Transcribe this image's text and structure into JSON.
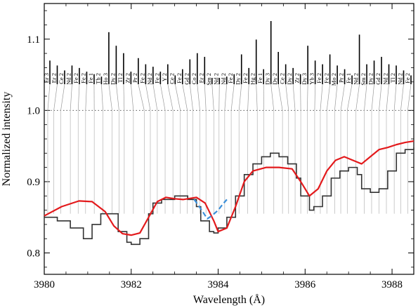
{
  "chart_data": {
    "type": "line",
    "xlabel": "Wavelength (Å)",
    "ylabel": "Normalized intensity",
    "xlim": [
      3980,
      3988.5
    ],
    "ylim": [
      0.77,
      1.15
    ],
    "x_ticks": [
      "3980",
      "3982",
      "3984",
      "3986",
      "3988"
    ],
    "y_ticks": [
      "0.8",
      "0.9",
      "1.0",
      "1.1"
    ],
    "x_tick_values": [
      3980,
      3982,
      3984,
      3986,
      3988
    ],
    "y_tick_values": [
      0.8,
      0.9,
      1.0,
      1.1
    ],
    "reference_line": 1.0,
    "series": [
      {
        "style": "observed-step",
        "color": "#333333",
        "x": [
          3980.0,
          3980.3,
          3980.6,
          3980.9,
          3981.1,
          3981.3,
          3981.5,
          3981.7,
          3981.9,
          3982.0,
          3982.2,
          3982.4,
          3982.5,
          3982.7,
          3982.9,
          3983.0,
          3983.3,
          3983.5,
          3983.6,
          3983.8,
          3983.9,
          3984.0,
          3984.2,
          3984.4,
          3984.6,
          3984.8,
          3985.0,
          3985.2,
          3985.4,
          3985.6,
          3985.8,
          3985.9,
          3986.1,
          3986.2,
          3986.4,
          3986.6,
          3986.8,
          3987.0,
          3987.2,
          3987.3,
          3987.5,
          3987.7,
          3987.9,
          3988.1,
          3988.3,
          3988.5
        ],
        "y": [
          0.85,
          0.845,
          0.835,
          0.82,
          0.84,
          0.855,
          0.855,
          0.83,
          0.815,
          0.812,
          0.82,
          0.855,
          0.87,
          0.875,
          0.875,
          0.88,
          0.875,
          0.865,
          0.845,
          0.83,
          0.828,
          0.835,
          0.85,
          0.88,
          0.91,
          0.925,
          0.935,
          0.94,
          0.935,
          0.925,
          0.905,
          0.88,
          0.86,
          0.865,
          0.88,
          0.905,
          0.915,
          0.92,
          0.91,
          0.89,
          0.885,
          0.89,
          0.915,
          0.94,
          0.945,
          0.948
        ]
      },
      {
        "style": "model-solid",
        "color": "#e31a1c",
        "x": [
          3980.0,
          3980.4,
          3980.8,
          3981.1,
          3981.4,
          3981.6,
          3981.8,
          3982.0,
          3982.2,
          3982.4,
          3982.6,
          3982.8,
          3983.0,
          3983.2,
          3983.5,
          3983.7,
          3983.9,
          3984.0,
          3984.2,
          3984.4,
          3984.6,
          3984.8,
          3985.1,
          3985.4,
          3985.7,
          3985.9,
          3986.1,
          3986.3,
          3986.5,
          3986.7,
          3986.9,
          3987.1,
          3987.3,
          3987.5,
          3987.7,
          3987.9,
          3988.1,
          3988.3,
          3988.5
        ],
        "y": [
          0.852,
          0.865,
          0.873,
          0.872,
          0.858,
          0.838,
          0.827,
          0.825,
          0.828,
          0.85,
          0.872,
          0.878,
          0.876,
          0.875,
          0.878,
          0.87,
          0.845,
          0.83,
          0.835,
          0.865,
          0.9,
          0.915,
          0.92,
          0.92,
          0.918,
          0.9,
          0.88,
          0.89,
          0.915,
          0.93,
          0.935,
          0.93,
          0.925,
          0.935,
          0.945,
          0.948,
          0.952,
          0.955,
          0.957
        ]
      },
      {
        "style": "model-dashed",
        "color": "#3b8fd9",
        "x": [
          3983.45,
          3983.6,
          3983.75,
          3983.85,
          3984.0,
          3984.1,
          3984.2
        ],
        "y": [
          0.875,
          0.862,
          0.848,
          0.852,
          0.86,
          0.868,
          0.875
        ]
      }
    ],
    "line_labels": [
      {
        "label": "Er 3",
        "wl": 3980.08,
        "strength": 0.36
      },
      {
        "label": "Er 2",
        "wl": 3980.22,
        "strength": 0.28
      },
      {
        "label": "Ce 2",
        "wl": 3980.38,
        "strength": 0.2
      },
      {
        "label": "Nd 2",
        "wl": 3980.6,
        "strength": 0.28
      },
      {
        "label": "Fe 2",
        "wl": 3980.78,
        "strength": 0.24
      },
      {
        "label": "Fe 2",
        "wl": 3980.95,
        "strength": 0.18
      },
      {
        "label": "Fe 1",
        "wl": 3981.15,
        "strength": 0.14
      },
      {
        "label": "Tb 2",
        "wl": 3981.35,
        "strength": 0.1
      },
      {
        "label": "Ho 3",
        "wl": 3981.56,
        "strength": 0.82
      },
      {
        "label": "Dy 2",
        "wl": 3981.72,
        "strength": 0.6
      },
      {
        "label": "Tl 2",
        "wl": 3981.84,
        "strength": 0.48
      },
      {
        "label": "Zr 2",
        "wl": 3982.05,
        "strength": 0.18
      },
      {
        "label": "Pr 2",
        "wl": 3982.3,
        "strength": 0.4
      },
      {
        "label": "Fe 2",
        "wl": 3982.44,
        "strength": 0.3
      },
      {
        "label": "Nd 2",
        "wl": 3982.6,
        "strength": 0.26
      },
      {
        "label": "Fe 2",
        "wl": 3982.78,
        "strength": 0.18
      },
      {
        "label": "Y 2",
        "wl": 3982.96,
        "strength": 0.3
      },
      {
        "label": "Ce 2",
        "wl": 3983.13,
        "strength": 0.12
      },
      {
        "label": "Fe 2",
        "wl": 3983.29,
        "strength": 0.22
      },
      {
        "label": "Gd 2",
        "wl": 3983.42,
        "strength": 0.38
      },
      {
        "label": "Co 2",
        "wl": 3983.58,
        "strength": 0.48
      },
      {
        "label": "Er 2",
        "wl": 3983.72,
        "strength": 0.42
      },
      {
        "label": "Sm 2",
        "wl": 3983.9,
        "strength": 0.08
      },
      {
        "label": "Nd 2",
        "wl": 3984.02,
        "strength": 0.08
      },
      {
        "label": "Nd 2",
        "wl": 3984.15,
        "strength": 0.1
      },
      {
        "label": "Fe 2",
        "wl": 3984.3,
        "strength": 0.14
      },
      {
        "label": "Dy 2",
        "wl": 3984.48,
        "strength": 0.46
      },
      {
        "label": "Fe 2",
        "wl": 3984.68,
        "strength": 0.24
      },
      {
        "label": "Hg 2",
        "wl": 3984.9,
        "strength": 0.7
      },
      {
        "label": "Fe 1",
        "wl": 3985.05,
        "strength": 0.22
      },
      {
        "label": "Dy 3",
        "wl": 3985.28,
        "strength": 1.0
      },
      {
        "label": "Dy 2",
        "wl": 3985.48,
        "strength": 0.5
      },
      {
        "label": "Ce 2",
        "wl": 3985.62,
        "strength": 0.3
      },
      {
        "label": "Dy 2",
        "wl": 3985.77,
        "strength": 0.24
      },
      {
        "label": "Zr 2",
        "wl": 3985.9,
        "strength": 0.14
      },
      {
        "label": "Dy 3",
        "wl": 3986.05,
        "strength": 0.6
      },
      {
        "label": "Yb 3",
        "wl": 3986.22,
        "strength": 0.36
      },
      {
        "label": "Fe 2",
        "wl": 3986.35,
        "strength": 0.3
      },
      {
        "label": "Fe 2",
        "wl": 3986.5,
        "strength": 0.46
      },
      {
        "label": "Mo 2",
        "wl": 3986.68,
        "strength": 0.28
      },
      {
        "label": "Pr 2",
        "wl": 3986.82,
        "strength": 0.22
      },
      {
        "label": "Fe 1",
        "wl": 3986.97,
        "strength": 0.12
      },
      {
        "label": "Nd 2",
        "wl": 3987.17,
        "strength": 0.78
      },
      {
        "label": "Sm 2",
        "wl": 3987.36,
        "strength": 0.3
      },
      {
        "label": "Dy 2",
        "wl": 3987.53,
        "strength": 0.36
      },
      {
        "label": "Gd 2",
        "wl": 3987.7,
        "strength": 0.42
      },
      {
        "label": "Nd 2",
        "wl": 3987.87,
        "strength": 0.3
      },
      {
        "label": "Tl 2",
        "wl": 3988.05,
        "strength": 0.28
      },
      {
        "label": "Nd 2",
        "wl": 3988.2,
        "strength": 0.2
      },
      {
        "label": "Fe 2",
        "wl": 3988.36,
        "strength": 0.12
      }
    ]
  }
}
